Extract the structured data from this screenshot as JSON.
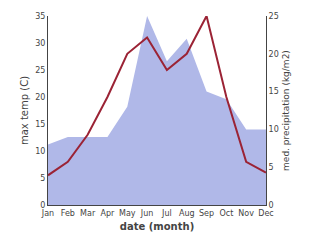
{
  "chart_data": {
    "type": "line",
    "categories": [
      "Jan",
      "Feb",
      "Mar",
      "Apr",
      "May",
      "Jun",
      "Jul",
      "Aug",
      "Sep",
      "Oct",
      "Nov",
      "Dec"
    ],
    "xlabel": "date (month)",
    "ylabel": "max temp (C)",
    "y2label": "med. precipitation (kg/m2)",
    "series": [
      {
        "type": "line",
        "color": "#9b2335",
        "values": [
          5.5,
          8.0,
          13.0,
          20.0,
          28.0,
          31.0,
          25.0,
          28.0,
          35.0,
          20.0,
          8.0,
          6.0
        ]
      },
      {
        "type": "area",
        "color": "#b0b8e8",
        "axis": "y2",
        "values": [
          8.0,
          9.0,
          9.0,
          9.0,
          13.0,
          25.0,
          19.0,
          22.0,
          15.0,
          14.0,
          10.0,
          10.0
        ]
      }
    ],
    "ylim": [
      0,
      35
    ],
    "yticks": [
      0,
      5,
      10,
      15,
      20,
      25,
      30,
      35
    ],
    "y2lim": [
      0,
      25
    ],
    "y2ticks": [
      0,
      5,
      10,
      15,
      20,
      25
    ],
    "grid": false
  }
}
